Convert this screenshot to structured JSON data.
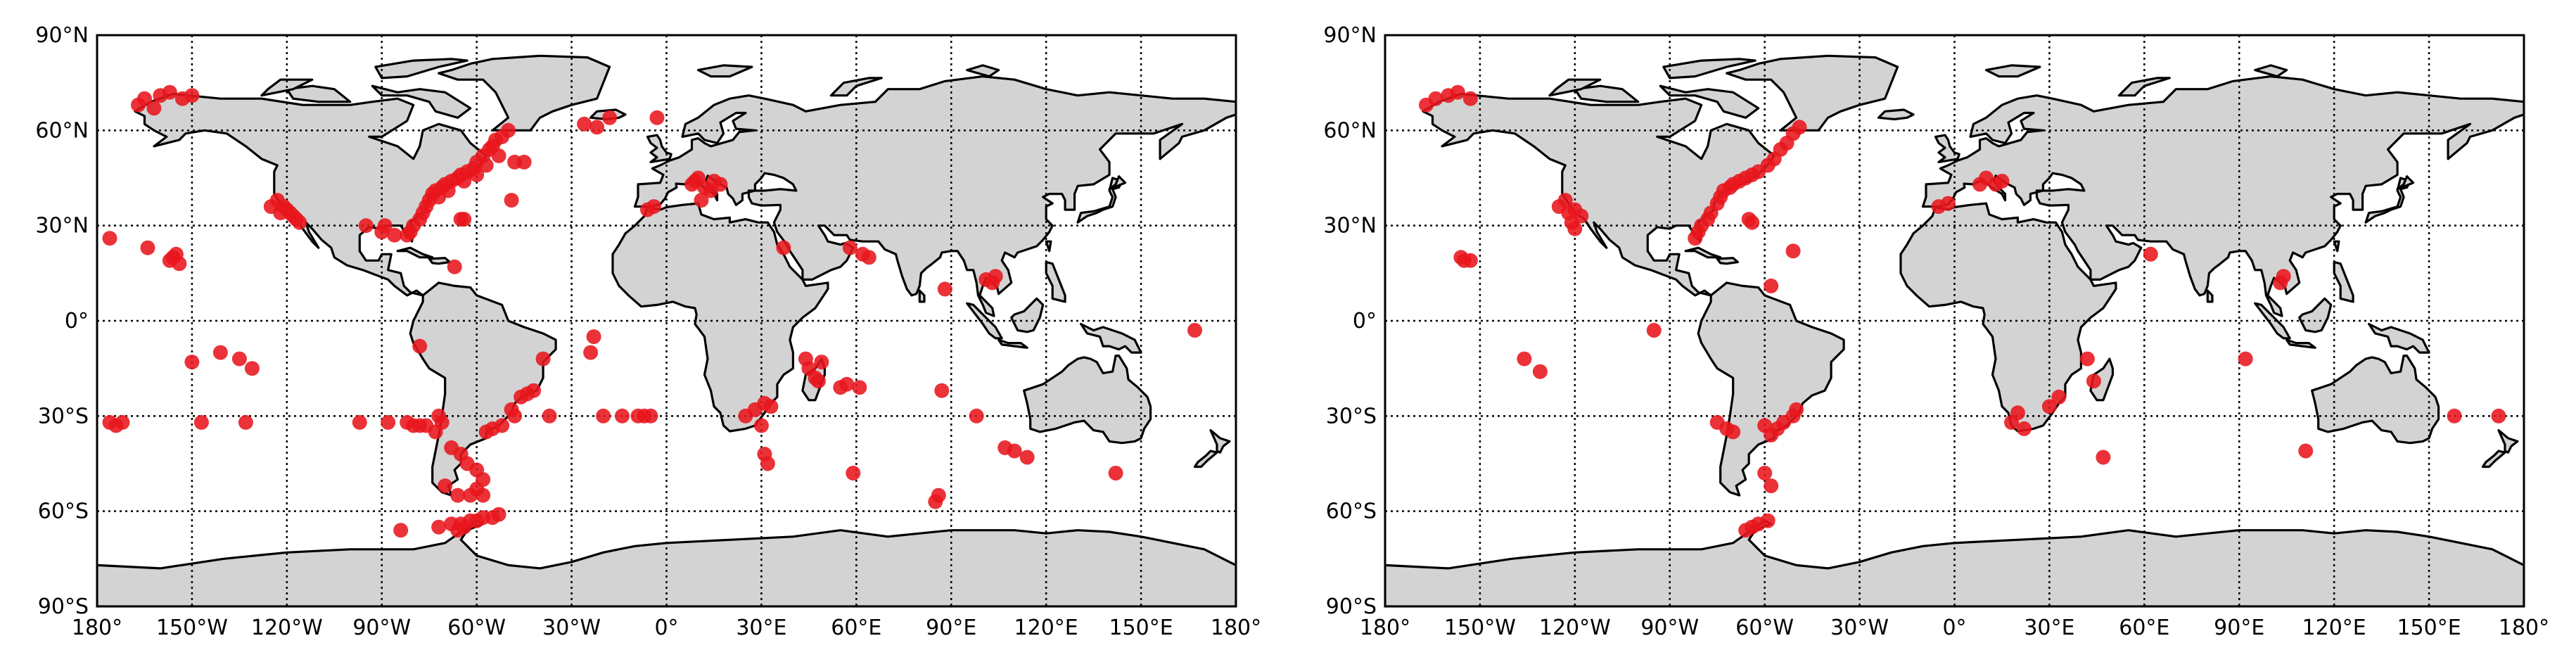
{
  "lon_ticks": [
    "180°",
    "150°W",
    "120°W",
    "90°W",
    "60°W",
    "30°W",
    "0°",
    "30°E",
    "60°E",
    "90°E",
    "120°E",
    "150°E",
    "180°"
  ],
  "lat_ticks": [
    "90°N",
    "60°N",
    "30°N",
    "0°",
    "30°S",
    "60°S",
    "90°S"
  ],
  "colors": {
    "point": "#e8161c",
    "land": "#d3d3d3",
    "coast": "#000000",
    "grid": "#000000"
  },
  "chart_data": [
    {
      "type": "scatter",
      "projection": "equirectangular",
      "xlim": [
        -180,
        180
      ],
      "ylim": [
        -90,
        90
      ],
      "grid": true,
      "points": [
        [
          -165,
          70
        ],
        [
          -160,
          71
        ],
        [
          -157,
          72
        ],
        [
          -153,
          70
        ],
        [
          -150,
          71
        ],
        [
          -167,
          68
        ],
        [
          -162,
          67
        ],
        [
          -176,
          26
        ],
        [
          -164,
          23
        ],
        [
          -156,
          20
        ],
        [
          -157,
          19
        ],
        [
          -155,
          21
        ],
        [
          -154,
          18
        ],
        [
          -176,
          -32
        ],
        [
          -174,
          -33
        ],
        [
          -172,
          -32
        ],
        [
          -150,
          -13
        ],
        [
          -147,
          -32
        ],
        [
          -141,
          -10
        ],
        [
          -135,
          -12
        ],
        [
          -133,
          -32
        ],
        [
          -131,
          -15
        ],
        [
          -125,
          36
        ],
        [
          -123,
          38
        ],
        [
          -122,
          34
        ],
        [
          -120,
          35
        ],
        [
          -118,
          33
        ],
        [
          -117,
          32
        ],
        [
          -121,
          36
        ],
        [
          -119,
          34
        ],
        [
          -116,
          31
        ],
        [
          -97,
          -32
        ],
        [
          -95,
          30
        ],
        [
          -90,
          28
        ],
        [
          -89,
          30
        ],
        [
          -86,
          27
        ],
        [
          -84,
          -66
        ],
        [
          -82,
          27
        ],
        [
          -81,
          28
        ],
        [
          -80,
          30
        ],
        [
          -78,
          32
        ],
        [
          -77,
          34
        ],
        [
          -76,
          36
        ],
        [
          -75,
          38
        ],
        [
          -74,
          40
        ],
        [
          -73,
          41
        ],
        [
          -71,
          42
        ],
        [
          -70,
          43
        ],
        [
          -68,
          44
        ],
        [
          -66,
          45
        ],
        [
          -65,
          46
        ],
        [
          -63,
          47
        ],
        [
          -61,
          48
        ],
        [
          -60,
          50
        ],
        [
          -58,
          52
        ],
        [
          -56,
          54
        ],
        [
          -55,
          55
        ],
        [
          -54,
          57
        ],
        [
          -52,
          58
        ],
        [
          -50,
          60
        ],
        [
          -72,
          39
        ],
        [
          -69,
          41
        ],
        [
          -64,
          44
        ],
        [
          -60,
          46
        ],
        [
          -57,
          49
        ],
        [
          -53,
          52
        ],
        [
          -45,
          50
        ],
        [
          -48,
          50
        ],
        [
          -49,
          38
        ],
        [
          -65,
          32
        ],
        [
          -64,
          32
        ],
        [
          -67,
          17
        ],
        [
          -78,
          -8
        ],
        [
          -88,
          -32
        ],
        [
          -82,
          -32
        ],
        [
          -80,
          -33
        ],
        [
          -78,
          -33
        ],
        [
          -76,
          -33
        ],
        [
          -73,
          -35
        ],
        [
          -72,
          -30
        ],
        [
          -71,
          -32
        ],
        [
          -68,
          -40
        ],
        [
          -65,
          -42
        ],
        [
          -63,
          -45
        ],
        [
          -60,
          -47
        ],
        [
          -58,
          -50
        ],
        [
          -60,
          -53
        ],
        [
          -66,
          -55
        ],
        [
          -62,
          -55
        ],
        [
          -58,
          -55
        ],
        [
          -70,
          -52
        ],
        [
          -72,
          -65
        ],
        [
          -68,
          -64
        ],
        [
          -65,
          -64
        ],
        [
          -62,
          -63
        ],
        [
          -60,
          -63
        ],
        [
          -58,
          -62
        ],
        [
          -55,
          -62
        ],
        [
          -53,
          -61
        ],
        [
          -64,
          -65
        ],
        [
          -66,
          -66
        ],
        [
          -57,
          -35
        ],
        [
          -55,
          -34
        ],
        [
          -52,
          -33
        ],
        [
          -49,
          -28
        ],
        [
          -48,
          -30
        ],
        [
          -46,
          -24
        ],
        [
          -44,
          -23
        ],
        [
          -42,
          -22
        ],
        [
          -39,
          -12
        ],
        [
          -37,
          -30
        ],
        [
          -23,
          -5
        ],
        [
          -24,
          -10
        ],
        [
          -20,
          -30
        ],
        [
          -14,
          -30
        ],
        [
          -9,
          -30
        ],
        [
          -7,
          -30
        ],
        [
          -5,
          -30
        ],
        [
          -26,
          62
        ],
        [
          -22,
          61
        ],
        [
          -18,
          64
        ],
        [
          -3,
          64
        ],
        [
          -4,
          36
        ],
        [
          -6,
          35
        ],
        [
          8,
          43
        ],
        [
          9,
          44
        ],
        [
          10,
          45
        ],
        [
          12,
          42
        ],
        [
          14,
          41
        ],
        [
          15,
          44
        ],
        [
          17,
          43
        ],
        [
          11,
          38
        ],
        [
          25,
          -30
        ],
        [
          28,
          -28
        ],
        [
          31,
          -26
        ],
        [
          33,
          -27
        ],
        [
          30,
          -33
        ],
        [
          31,
          -42
        ],
        [
          32,
          -45
        ],
        [
          37,
          23
        ],
        [
          44,
          -12
        ],
        [
          45,
          -15
        ],
        [
          47,
          -18
        ],
        [
          48,
          -19
        ],
        [
          49,
          -13
        ],
        [
          55,
          -21
        ],
        [
          57,
          -20
        ],
        [
          61,
          -21
        ],
        [
          59,
          -48
        ],
        [
          58,
          23
        ],
        [
          62,
          21
        ],
        [
          64,
          20
        ],
        [
          85,
          -57
        ],
        [
          86,
          -55
        ],
        [
          87,
          -22
        ],
        [
          88,
          10
        ],
        [
          98,
          -30
        ],
        [
          101,
          13
        ],
        [
          103,
          12
        ],
        [
          104,
          14
        ],
        [
          107,
          -40
        ],
        [
          110,
          -41
        ],
        [
          114,
          -43
        ],
        [
          142,
          -48
        ],
        [
          167,
          -3
        ]
      ]
    },
    {
      "type": "scatter",
      "projection": "equirectangular",
      "xlim": [
        -180,
        180
      ],
      "ylim": [
        -90,
        90
      ],
      "grid": true,
      "points": [
        [
          -167,
          68
        ],
        [
          -164,
          70
        ],
        [
          -160,
          71
        ],
        [
          -157,
          72
        ],
        [
          -153,
          70
        ],
        [
          -156,
          20
        ],
        [
          -155,
          19
        ],
        [
          -153,
          19
        ],
        [
          -136,
          -12
        ],
        [
          -131,
          -16
        ],
        [
          -125,
          36
        ],
        [
          -123,
          38
        ],
        [
          -122,
          34
        ],
        [
          -120,
          35
        ],
        [
          -118,
          33
        ],
        [
          -121,
          31
        ],
        [
          -120,
          29
        ],
        [
          -95,
          -3
        ],
        [
          -82,
          26
        ],
        [
          -81,
          28
        ],
        [
          -80,
          30
        ],
        [
          -78,
          32
        ],
        [
          -77,
          34
        ],
        [
          -75,
          37
        ],
        [
          -74,
          39
        ],
        [
          -73,
          41
        ],
        [
          -71,
          42
        ],
        [
          -70,
          43
        ],
        [
          -68,
          44
        ],
        [
          -66,
          45
        ],
        [
          -64,
          46
        ],
        [
          -62,
          47
        ],
        [
          -59,
          49
        ],
        [
          -57,
          51
        ],
        [
          -55,
          54
        ],
        [
          -53,
          56
        ],
        [
          -51,
          59
        ],
        [
          -49,
          61
        ],
        [
          -65,
          32
        ],
        [
          -64,
          31
        ],
        [
          -58,
          11
        ],
        [
          -51,
          22
        ],
        [
          -75,
          -32
        ],
        [
          -72,
          -34
        ],
        [
          -70,
          -35
        ],
        [
          -60,
          -33
        ],
        [
          -58,
          -36
        ],
        [
          -56,
          -34
        ],
        [
          -54,
          -32
        ],
        [
          -51,
          -30
        ],
        [
          -50,
          -28
        ],
        [
          -60,
          -48
        ],
        [
          -58,
          -52
        ],
        [
          -59,
          -63
        ],
        [
          -62,
          -64
        ],
        [
          -64,
          -65
        ],
        [
          -66,
          -66
        ],
        [
          -5,
          36
        ],
        [
          -2,
          37
        ],
        [
          8,
          43
        ],
        [
          10,
          45
        ],
        [
          13,
          43
        ],
        [
          15,
          44
        ],
        [
          18,
          -32
        ],
        [
          20,
          -29
        ],
        [
          22,
          -34
        ],
        [
          30,
          -27
        ],
        [
          33,
          -24
        ],
        [
          42,
          -12
        ],
        [
          44,
          -19
        ],
        [
          47,
          -43
        ],
        [
          62,
          21
        ],
        [
          103,
          12
        ],
        [
          104,
          14
        ],
        [
          92,
          -12
        ],
        [
          111,
          -41
        ],
        [
          158,
          -30
        ],
        [
          172,
          -30
        ]
      ]
    }
  ]
}
